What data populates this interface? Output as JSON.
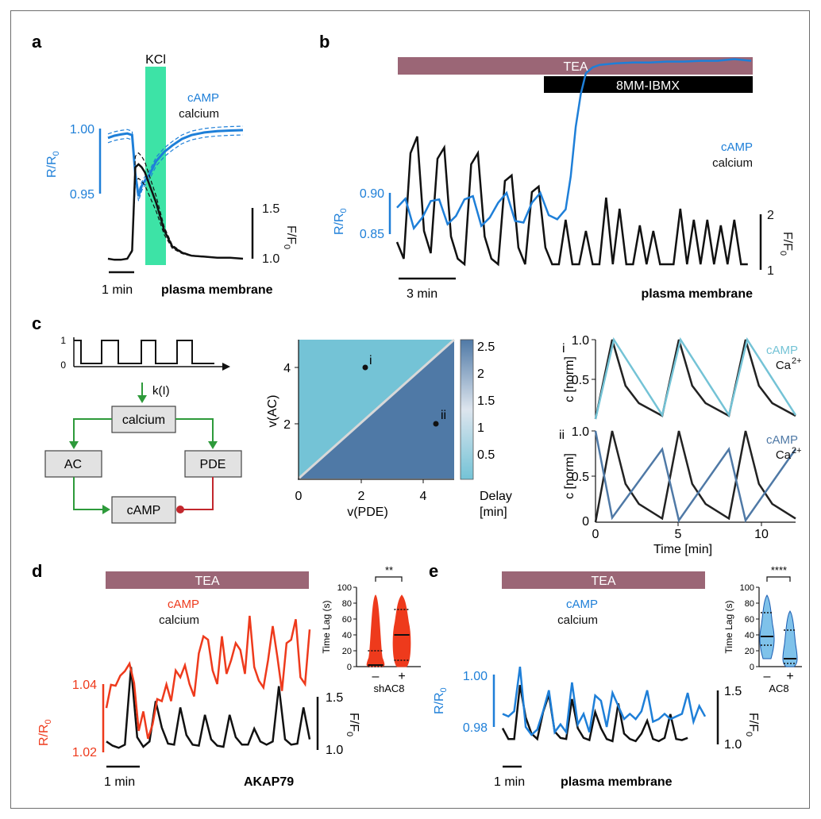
{
  "colors": {
    "camp_blue": "#1e7fd8",
    "camp_red": "#ee3a1c",
    "calcium": "#111111",
    "tea_bar": "#9b6676",
    "kcl_bar": "#3de3a6",
    "green_arrow": "#2d9a3a",
    "red_inhibit": "#c2272d",
    "light_cyan": "#74c3d6",
    "steel_blue": "#4f79a6",
    "box_fill": "#e2e2e2"
  },
  "panels": {
    "a": {
      "label": "a",
      "stim": "KCl",
      "legend": [
        "cAMP",
        "calcium"
      ],
      "left_axis": {
        "name": "R/R",
        "sub": "0",
        "ticks": [
          "1.00",
          "0.95"
        ]
      },
      "right_axis": {
        "name": "F/F",
        "sub": "0",
        "ticks": [
          "1.5",
          "1.0"
        ]
      },
      "scale_bar": "1 min",
      "location": "plasma membrane"
    },
    "b": {
      "label": "b",
      "bars": [
        "TEA",
        "8MM-IBMX"
      ],
      "legend": [
        "cAMP",
        "calcium"
      ],
      "left_axis": {
        "name": "R/R",
        "sub": "0",
        "ticks": [
          "0.90",
          "0.85"
        ]
      },
      "right_axis": {
        "name": "F/F",
        "sub": "0",
        "ticks": [
          "2",
          "1"
        ]
      },
      "scale_bar": "3 min",
      "location": "plasma membrane"
    },
    "c": {
      "label": "c",
      "input_ticks": [
        "1",
        "0"
      ],
      "k_label": "k(I)",
      "nodes": [
        "calcium",
        "AC",
        "PDE",
        "cAMP"
      ],
      "heatmap": {
        "xlabel": "v(PDE)",
        "ylabel": "v(AC)",
        "xticks": [
          "0",
          "2",
          "4"
        ],
        "yticks": [
          "2",
          "4"
        ],
        "points": [
          "i",
          "ii"
        ],
        "colorbar_ticks": [
          "2.5",
          "2",
          "1.5",
          "1",
          "0.5"
        ],
        "colorbar_label": [
          "Delay",
          "[min]"
        ]
      },
      "traces": {
        "roman": [
          "i",
          "ii"
        ],
        "ylabel": "c [norm]",
        "yticks_top": [
          "1.0",
          "0.5",
          "0"
        ],
        "yticks_bottom": [
          "1.0",
          "0.5",
          "0"
        ],
        "xticks": [
          "0",
          "5",
          "10"
        ],
        "xlabel": "Time [min]",
        "legend_i": [
          "cAMP",
          "Ca"
        ],
        "legend_ii": [
          "cAMP",
          "Ca"
        ],
        "ca_superscript": "2+"
      }
    },
    "d": {
      "label": "d",
      "bar": "TEA",
      "legend": [
        "cAMP",
        "calcium"
      ],
      "left_axis": {
        "name": "R/R",
        "sub": "0",
        "ticks": [
          "1.04",
          "1.02"
        ]
      },
      "right_axis": {
        "name": "F/F",
        "sub": "0",
        "ticks": [
          "1.5",
          "1.0"
        ]
      },
      "scale_bar": "1 min",
      "location": "AKAP79",
      "inset": {
        "ylabel": "Time Lag (s)",
        "yticks": [
          "100",
          "80",
          "60",
          "40",
          "20",
          "0"
        ],
        "xticks": [
          "–",
          "+"
        ],
        "group": "shAC8",
        "sig": "**"
      }
    },
    "e": {
      "label": "e",
      "bar": "TEA",
      "legend": [
        "cAMP",
        "calcium"
      ],
      "left_axis": {
        "name": "R/R",
        "sub": "0",
        "ticks": [
          "1.00",
          "0.98"
        ]
      },
      "right_axis": {
        "name": "F/F",
        "sub": "0",
        "ticks": [
          "1.5",
          "1.0"
        ]
      },
      "scale_bar": "1 min",
      "location": "plasma membrane",
      "inset": {
        "ylabel": "Time Lag (s)",
        "yticks": [
          "100",
          "80",
          "60",
          "40",
          "20",
          "0"
        ],
        "xticks": [
          "–",
          "+"
        ],
        "group": "AC8",
        "sig": "****"
      }
    }
  },
  "chart_data": [
    {
      "panel": "a",
      "type": "line",
      "xunit": "min",
      "series": [
        {
          "name": "cAMP",
          "unit": "R/R0",
          "x": [
            0,
            0.2,
            0.4,
            0.6,
            0.75,
            0.85,
            0.95,
            1.05,
            1.15,
            1.3,
            1.5,
            1.75,
            2.0,
            2.3,
            2.6,
            3.0,
            3.4,
            3.8,
            4.2
          ],
          "y": [
            0.9928,
            0.9945,
            0.9955,
            0.9962,
            0.995,
            0.965,
            0.948,
            0.956,
            0.96,
            0.965,
            0.975,
            0.982,
            0.987,
            0.992,
            0.995,
            0.997,
            0.998,
            0.9985,
            0.9988
          ]
        },
        {
          "name": "calcium",
          "unit": "F/F0",
          "x": [
            0,
            0.2,
            0.4,
            0.6,
            0.75,
            0.85,
            0.95,
            1.05,
            1.15,
            1.3,
            1.5,
            1.75,
            2.0,
            2.3,
            2.6,
            3.0,
            3.4,
            3.8,
            4.2
          ],
          "y": [
            1.0,
            0.99,
            0.99,
            1.0,
            1.08,
            1.9,
            1.93,
            1.9,
            1.85,
            1.72,
            1.55,
            1.28,
            1.12,
            1.06,
            1.03,
            1.02,
            1.01,
            1.01,
            1.0
          ]
        }
      ]
    },
    {
      "panel": "b",
      "type": "line",
      "xunit": "min",
      "series": [
        {
          "name": "cAMP",
          "unit": "R/R0",
          "x": [
            0,
            0.5,
            1.0,
            1.5,
            2.0,
            2.5,
            3.0,
            3.5,
            4.0,
            4.5,
            5.0,
            5.5,
            6.0,
            6.5,
            7.0,
            7.5,
            8.0,
            8.5,
            9.0,
            9.5,
            10.0,
            10.3,
            10.6,
            10.9,
            11.2,
            11.6,
            12.0,
            13.0,
            14.0,
            15.0,
            16.0,
            17.0,
            18.0,
            19.0,
            20.0,
            21.0
          ],
          "y": [
            0.882,
            0.893,
            0.857,
            0.87,
            0.89,
            0.892,
            0.862,
            0.872,
            0.892,
            0.896,
            0.86,
            0.87,
            0.888,
            0.9,
            0.866,
            0.864,
            0.888,
            0.9,
            0.873,
            0.868,
            0.88,
            0.92,
            0.98,
            1.02,
            1.045,
            1.052,
            1.055,
            1.057,
            1.058,
            1.058,
            1.059,
            1.059,
            1.06,
            1.06,
            1.062,
            1.06
          ]
        },
        {
          "name": "calcium",
          "unit": "F/F0",
          "x": [
            0,
            0.4,
            0.8,
            1.2,
            1.6,
            2.0,
            2.4,
            2.8,
            3.2,
            3.6,
            4.0,
            4.4,
            4.8,
            5.2,
            5.6,
            6.0,
            6.4,
            6.8,
            7.2,
            7.6,
            8.0,
            8.4,
            8.8,
            9.2,
            9.6,
            10.0,
            10.4,
            10.8,
            11.2,
            11.6,
            12.0,
            12.4,
            12.8,
            13.2,
            13.6,
            14.0,
            14.4,
            14.8,
            15.2,
            15.6,
            16.0,
            16.4,
            16.8,
            17.2,
            17.6,
            18.0,
            18.4,
            18.8,
            19.2,
            19.6,
            20.0,
            20.4,
            20.8
          ],
          "y": [
            1.5,
            1.2,
            3.1,
            3.4,
            1.7,
            1.3,
            3.0,
            3.2,
            1.6,
            1.2,
            1.1,
            2.9,
            3.1,
            1.6,
            1.2,
            1.1,
            2.6,
            2.7,
            1.4,
            1.1,
            2.4,
            2.5,
            1.4,
            1.1,
            1.1,
            1.9,
            1.1,
            1.1,
            1.7,
            1.1,
            1.1,
            2.3,
            1.1,
            2.1,
            1.1,
            1.1,
            1.8,
            1.1,
            1.7,
            1.1,
            1.1,
            1.1,
            2.1,
            1.1,
            1.9,
            1.1,
            1.9,
            1.1,
            1.8,
            1.1,
            1.9,
            1.1,
            1.1
          ]
        }
      ]
    },
    {
      "panel": "c-heatmap",
      "type": "heatmap",
      "xlabel": "v(PDE)",
      "ylabel": "v(AC)",
      "xlim": [
        0,
        5
      ],
      "ylim": [
        0,
        5
      ],
      "regions": [
        {
          "where": "v(AC) > v(PDE)",
          "delay_min": 0.3
        },
        {
          "where": "v(AC) < v(PDE)",
          "delay_min": 2.3
        }
      ],
      "points": [
        {
          "name": "i",
          "x": 1.9,
          "y": 4.0
        },
        {
          "name": "ii",
          "x": 3.9,
          "y": 2.1
        }
      ],
      "colorbar": {
        "label": "Delay [min]",
        "range": [
          0.1,
          2.6
        ]
      }
    },
    {
      "panel": "c-i",
      "type": "line",
      "xlabel": "Time [min]",
      "ylabel": "c [norm]",
      "xlim": [
        0,
        12
      ],
      "ylim": [
        0,
        1
      ],
      "series": [
        {
          "name": "cAMP",
          "x": [
            0,
            1.1,
            4.0,
            5.1,
            8.0,
            9.1,
            12.0
          ],
          "y": [
            0,
            1.0,
            0.05,
            1.0,
            0.05,
            1.0,
            0.05
          ]
        },
        {
          "name": "Ca2+",
          "x": [
            0,
            1.0,
            1.8,
            2.6,
            4.0,
            5.0,
            5.8,
            6.6,
            8.0,
            9.0,
            9.8,
            10.6,
            12.0
          ],
          "y": [
            0,
            1.0,
            0.42,
            0.2,
            0.04,
            1.0,
            0.42,
            0.2,
            0.04,
            1.0,
            0.42,
            0.2,
            0.04
          ]
        }
      ]
    },
    {
      "panel": "c-ii",
      "type": "line",
      "xlabel": "Time [min]",
      "ylabel": "c [norm]",
      "xlim": [
        0,
        12
      ],
      "ylim": [
        0,
        1
      ],
      "series": [
        {
          "name": "cAMP",
          "x": [
            0,
            1.0,
            4.0,
            5.0,
            8.0,
            9.0,
            12.0
          ],
          "y": [
            1.0,
            0.05,
            0.8,
            0.02,
            0.8,
            0.02,
            0.8
          ]
        },
        {
          "name": "Ca2+",
          "x": [
            0,
            1.0,
            1.8,
            2.6,
            4.0,
            5.0,
            5.8,
            6.6,
            8.0,
            9.0,
            9.8,
            10.6,
            12.0
          ],
          "y": [
            0,
            1.0,
            0.42,
            0.2,
            0.04,
            1.0,
            0.42,
            0.2,
            0.04,
            1.0,
            0.42,
            0.2,
            0.04
          ]
        }
      ]
    },
    {
      "panel": "d",
      "type": "line",
      "xunit": "min",
      "series": [
        {
          "name": "cAMP",
          "unit": "R/R0",
          "x": [
            0,
            0.15,
            0.3,
            0.45,
            0.6,
            0.75,
            0.9,
            1.05,
            1.2,
            1.35,
            1.5,
            1.65,
            1.8,
            1.95,
            2.1,
            2.25,
            2.4,
            2.55,
            2.7,
            2.85,
            3.0,
            3.15,
            3.3,
            3.45,
            3.6,
            3.75,
            3.9,
            4.05,
            4.2,
            4.35,
            4.5,
            4.65,
            4.8,
            4.95,
            5.1,
            5.25,
            5.4,
            5.55,
            5.7,
            5.85,
            6.0,
            6.15,
            6.3,
            6.45,
            6.6
          ],
          "y": [
            1.033,
            1.0398,
            1.0395,
            1.0425,
            1.0438,
            1.046,
            1.0403,
            1.0263,
            1.032,
            1.024,
            1.0282,
            1.0356,
            1.035,
            1.0399,
            1.035,
            1.044,
            1.042,
            1.0455,
            1.04,
            1.0364,
            1.049,
            1.054,
            1.053,
            1.044,
            1.04,
            1.054,
            1.043,
            1.047,
            1.052,
            1.05,
            1.043,
            1.06,
            1.045,
            1.041,
            1.039,
            1.047,
            1.057,
            1.048,
            1.038,
            1.052,
            1.053,
            1.059,
            1.042,
            1.04,
            1.056
          ]
        },
        {
          "name": "calcium",
          "unit": "F/F0",
          "x": [
            0,
            0.2,
            0.4,
            0.6,
            0.8,
            1.0,
            1.2,
            1.4,
            1.6,
            1.8,
            2.0,
            2.2,
            2.4,
            2.6,
            2.8,
            3.0,
            3.2,
            3.4,
            3.6,
            3.8,
            4.0,
            4.2,
            4.4,
            4.6,
            4.8,
            5.0,
            5.2,
            5.4,
            5.6,
            5.8,
            6.0,
            6.2,
            6.4,
            6.6
          ],
          "y": [
            1.08,
            1.04,
            1.02,
            1.05,
            1.78,
            1.12,
            1.03,
            1.08,
            1.46,
            1.21,
            1.06,
            1.05,
            1.4,
            1.14,
            1.05,
            1.04,
            1.33,
            1.1,
            1.04,
            1.03,
            1.33,
            1.12,
            1.05,
            1.05,
            1.2,
            1.08,
            1.05,
            1.08,
            1.6,
            1.1,
            1.05,
            1.06,
            1.4,
            1.1
          ]
        }
      ]
    },
    {
      "panel": "d-inset",
      "type": "violin",
      "ylabel": "Time Lag (s)",
      "ylim": [
        0,
        100
      ],
      "groups": [
        {
          "name": "–",
          "median": 2,
          "q1": 0,
          "q3": 20,
          "min": 0,
          "max": 90
        },
        {
          "name": "+",
          "median": 40,
          "q1": 8,
          "q3": 72,
          "min": 0,
          "max": 90
        }
      ],
      "significance": "**"
    },
    {
      "panel": "e",
      "type": "line",
      "xunit": "min",
      "series": [
        {
          "name": "cAMP",
          "unit": "R/R0",
          "x": [
            0,
            0.3,
            0.6,
            0.9,
            1.2,
            1.5,
            1.8,
            2.1,
            2.4,
            2.7,
            3.0,
            3.3,
            3.6,
            3.9,
            4.2,
            4.5,
            4.8,
            5.1,
            5.4,
            5.7,
            6.0,
            6.3,
            6.6,
            6.9,
            7.2,
            7.5,
            7.8,
            8.1,
            8.4,
            8.7,
            9.0,
            9.3,
            9.6,
            9.9,
            10.2,
            10.5
          ],
          "y": [
            0.985,
            0.984,
            0.986,
            1.003,
            0.98,
            0.977,
            0.979,
            0.986,
            0.994,
            0.978,
            0.981,
            0.978,
            0.997,
            0.981,
            0.985,
            0.978,
            0.992,
            0.99,
            0.98,
            0.993,
            0.988,
            0.983,
            0.985,
            0.983,
            0.986,
            0.994,
            0.982,
            0.983,
            0.985,
            0.983,
            0.984,
            0.985,
            0.993,
            0.982,
            0.988,
            0.984
          ]
        },
        {
          "name": "calcium",
          "unit": "F/F0",
          "x": [
            0,
            0.3,
            0.6,
            0.9,
            1.2,
            1.5,
            1.8,
            2.1,
            2.4,
            2.7,
            3.0,
            3.3,
            3.6,
            3.9,
            4.2,
            4.5,
            4.8,
            5.1,
            5.4,
            5.7,
            6.0,
            6.3,
            6.6,
            6.9,
            7.2,
            7.5,
            7.8,
            8.1,
            8.4,
            8.7,
            9.0,
            9.3,
            9.6
          ],
          "y": [
            1.15,
            1.05,
            1.05,
            1.55,
            1.25,
            1.1,
            1.05,
            1.3,
            1.46,
            1.12,
            1.06,
            1.05,
            1.42,
            1.15,
            1.06,
            1.04,
            1.3,
            1.15,
            1.05,
            1.03,
            1.38,
            1.1,
            1.05,
            1.03,
            1.1,
            1.22,
            1.05,
            1.03,
            1.06,
            1.28,
            1.05,
            1.04,
            1.06
          ]
        }
      ]
    },
    {
      "panel": "e-inset",
      "type": "violin",
      "ylabel": "Time Lag (s)",
      "ylim": [
        0,
        100
      ],
      "groups": [
        {
          "name": "–",
          "median": 38,
          "q1": 27,
          "q3": 68,
          "min": 10,
          "max": 90
        },
        {
          "name": "+",
          "median": 10,
          "q1": 4,
          "q3": 46,
          "min": 0,
          "max": 70
        }
      ],
      "significance": "****"
    }
  ]
}
